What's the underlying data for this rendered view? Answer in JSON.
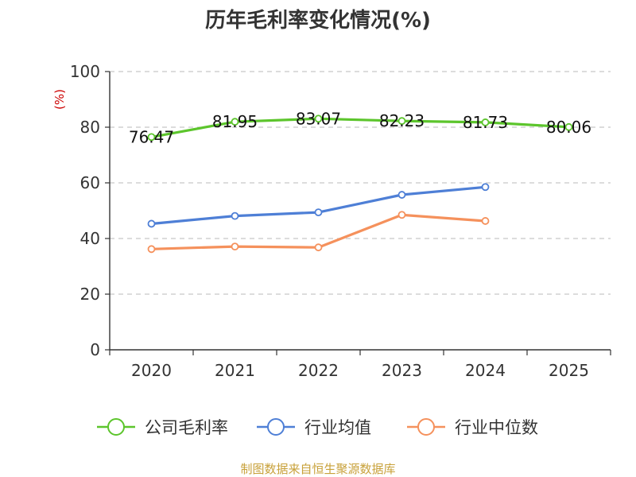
{
  "chart_data": {
    "type": "line",
    "title": "历年毛利率变化情况(%)",
    "ylabel": "(%)",
    "xlabel": "",
    "ylim": [
      0,
      100
    ],
    "yticks": [
      0,
      20,
      40,
      60,
      80,
      100
    ],
    "grid": true,
    "categories": [
      "2020",
      "2021",
      "2022",
      "2023",
      "2024",
      "2025"
    ],
    "series": [
      {
        "name": "公司毛利率",
        "color": "#5cc52c",
        "values": [
          76.47,
          81.95,
          83.07,
          82.23,
          81.73,
          80.06
        ],
        "labels": [
          "76.47",
          "81.95",
          "83.07",
          "82.23",
          "81.73",
          "80.06"
        ]
      },
      {
        "name": "行业均值",
        "color": "#4e7fd6",
        "values": [
          45.3,
          48.1,
          49.4,
          55.7,
          58.5,
          null
        ]
      },
      {
        "name": "行业中位数",
        "color": "#f5915c",
        "values": [
          36.2,
          37.1,
          36.8,
          48.5,
          46.3,
          null
        ]
      }
    ],
    "legend_position": "bottom",
    "source": "制图数据来自恒生聚源数据库"
  }
}
